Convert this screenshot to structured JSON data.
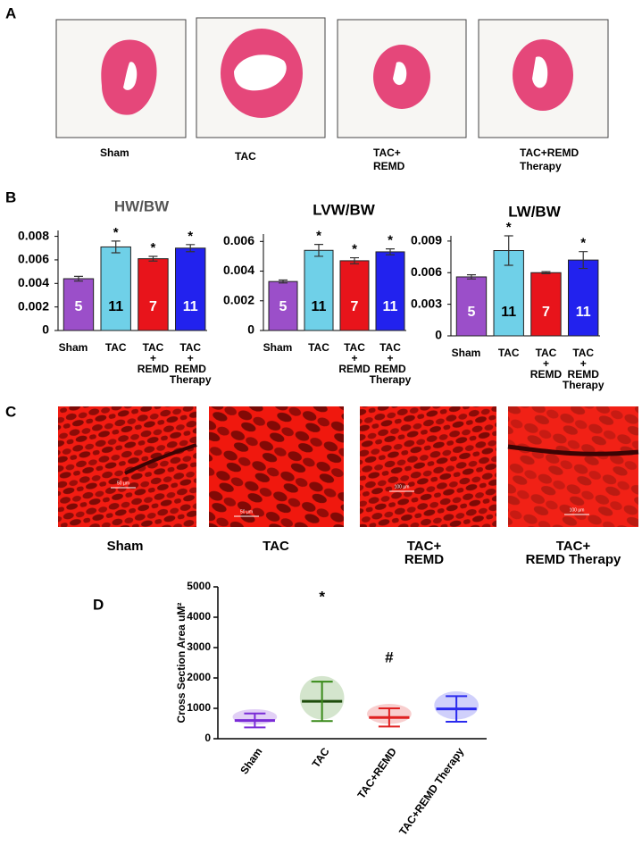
{
  "panels": {
    "a": {
      "label": "A",
      "captions": [
        "Sham",
        "TAC",
        "TAC+\nREMD",
        "TAC+REMD\nTherapy"
      ]
    },
    "b": {
      "label": "B"
    },
    "c": {
      "label": "C",
      "captions": [
        "Sham",
        "TAC",
        "TAC+\nREMD",
        "TAC+\nREMD Therapy"
      ],
      "scale_bars": [
        "50 µm",
        "50 µm",
        "100 µm",
        "100 µm"
      ]
    },
    "d": {
      "label": "D"
    }
  },
  "chart_data": [
    {
      "type": "bar",
      "title": "HW/BW",
      "title_color": "#555555",
      "categories": [
        "Sham",
        "TAC",
        "TAC\n+\nREMD",
        "TAC\n+\nREMD\nTherapy"
      ],
      "values": [
        0.0044,
        0.0071,
        0.0061,
        0.007
      ],
      "errors": [
        0.0002,
        0.0005,
        0.0002,
        0.0003
      ],
      "colors": [
        "#9b4fc9",
        "#6fd0e8",
        "#e8141b",
        "#2222ee"
      ],
      "n": [
        "5",
        "11",
        "7",
        "11"
      ],
      "annotations": [
        null,
        "*",
        "*",
        "*"
      ],
      "ylim": [
        0,
        0.0085
      ],
      "yticks": [
        0,
        0.002,
        0.004,
        0.006,
        0.008
      ]
    },
    {
      "type": "bar",
      "title": "LVW/BW",
      "title_color": "#000000",
      "categories": [
        "Sham",
        "TAC",
        "TAC\n+\nREMD",
        "TAC\n+\nREMD\nTherapy"
      ],
      "values": [
        0.0033,
        0.0054,
        0.0047,
        0.0053
      ],
      "errors": [
        0.0001,
        0.0004,
        0.0002,
        0.0002
      ],
      "colors": [
        "#9b4fc9",
        "#6fd0e8",
        "#e8141b",
        "#2222ee"
      ],
      "n": [
        "5",
        "11",
        "7",
        "11"
      ],
      "annotations": [
        null,
        "*",
        "*",
        "*"
      ],
      "ylim": [
        0,
        0.0065
      ],
      "yticks": [
        0,
        0.002,
        0.004,
        0.006
      ]
    },
    {
      "type": "bar",
      "title": "LW/BW",
      "title_color": "#000000",
      "categories": [
        "Sham",
        "TAC",
        "TAC\n+\nREMD",
        "TAC\n+\nREMD\nTherapy"
      ],
      "values": [
        0.0056,
        0.0081,
        0.006,
        0.0072
      ],
      "errors": [
        0.0002,
        0.0014,
        0.0001,
        0.0008
      ],
      "colors": [
        "#9b4fc9",
        "#6fd0e8",
        "#e8141b",
        "#2222ee"
      ],
      "n": [
        "5",
        "11",
        "7",
        "11"
      ],
      "annotations": [
        null,
        "*",
        null,
        "*"
      ],
      "ylim": [
        0,
        0.0095
      ],
      "yticks": [
        0,
        0.003,
        0.006,
        0.009
      ]
    },
    {
      "type": "dot",
      "y_label": "Cross Section Area uM²",
      "categories": [
        "Sham",
        "TAC",
        "TAC+REMD",
        "TAC+REMD Therapy"
      ],
      "values": [
        600,
        1230,
        700,
        980
      ],
      "errors": [
        230,
        650,
        300,
        420
      ],
      "colors": [
        "#7a2bd6",
        "#3a8a1a",
        "#e02020",
        "#2a2aee"
      ],
      "annotations": [
        null,
        "*",
        "#",
        null
      ],
      "ylim": [
        0,
        5000
      ],
      "yticks": [
        0,
        1000,
        2000,
        3000,
        4000,
        5000
      ]
    }
  ]
}
